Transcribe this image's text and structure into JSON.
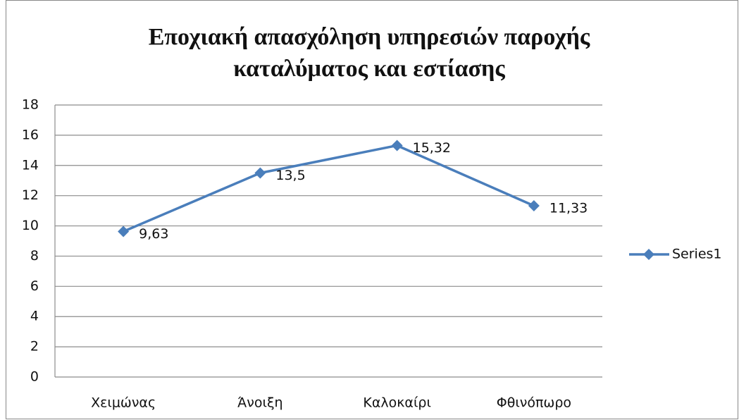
{
  "chart_data": {
    "type": "line",
    "title": "Εποχιακή απασχόληση υπηρεσιών παροχής καταλύματος και εστίασης",
    "categories": [
      "Χειμώνας",
      "Άνοιξη",
      "Καλοκαίρι",
      "Φθινόπωρο"
    ],
    "series": [
      {
        "name": "Series1",
        "color": "#4a7ebb",
        "values": [
          9.63,
          13.5,
          15.32,
          11.33
        ],
        "value_labels": [
          "9,63",
          "13,5",
          "15,32",
          "11,33"
        ]
      }
    ],
    "ylim": [
      0,
      18
    ],
    "yticks": [
      0,
      2,
      4,
      6,
      8,
      10,
      12,
      14,
      16,
      18
    ],
    "grid": true,
    "legend": "right"
  }
}
